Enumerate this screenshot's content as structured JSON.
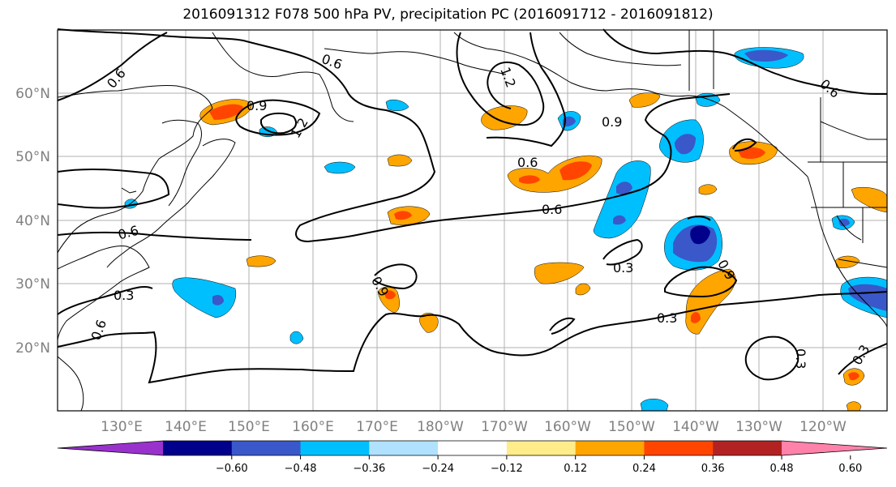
{
  "title": "2016091312 F078 500 hPa PV, precipitation PC (2016091712 - 2016091812)",
  "lon_labels": [
    "130°E",
    "140°E",
    "150°E",
    "160°E",
    "170°E",
    "180°W",
    "170°W",
    "160°W",
    "150°W",
    "140°W",
    "130°W",
    "120°W"
  ],
  "lat_labels": [
    "60°N",
    "50°N",
    "40°N",
    "30°N",
    "20°N"
  ],
  "contour_labels": [
    "0.6",
    "0.6",
    "0.9",
    "1.2",
    "1.2",
    "0.9",
    "0.6",
    "0.6",
    "0.6",
    "0.3",
    "0.3",
    "0.3",
    "0.9",
    "0.6",
    "0.6",
    "0.9",
    "0.3",
    "0.3"
  ],
  "colorbar": {
    "ticks": [
      "−0.60",
      "−0.48",
      "−0.36",
      "−0.24",
      "−0.12",
      "0.12",
      "0.24",
      "0.36",
      "0.48",
      "0.60"
    ],
    "colors": [
      "#9932cc",
      "#00008b",
      "#3a58c9",
      "#00bfff",
      "#b0e2ff",
      "#ffffff",
      "#ffec8b",
      "#ffa500",
      "#ff4500",
      "#b22222",
      "#ff82ab"
    ]
  }
}
